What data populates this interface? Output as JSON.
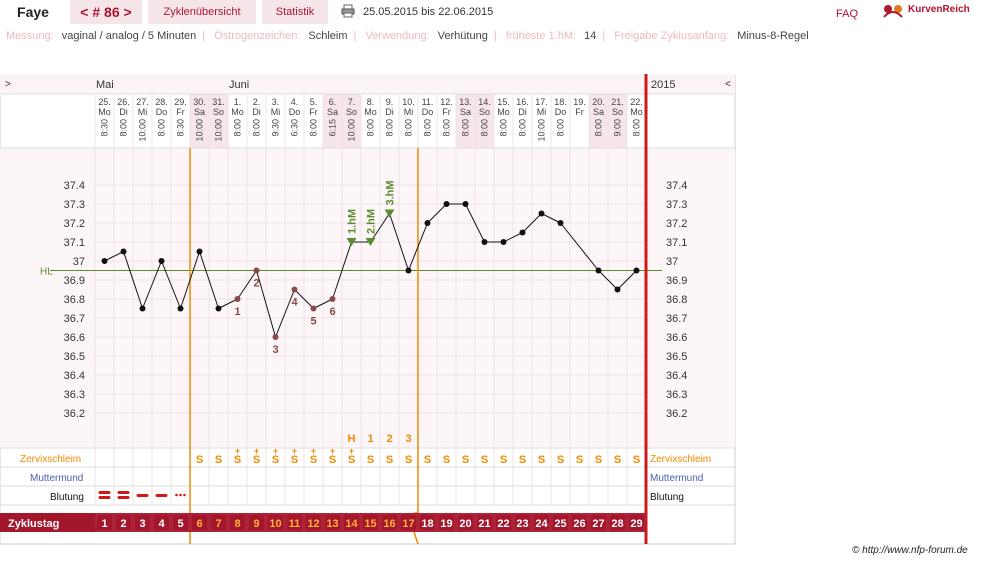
{
  "header": {
    "name": "Faye",
    "cycle_label": "< # 86 >",
    "tabs": [
      {
        "label": "Zyklenübersicht"
      },
      {
        "label": "Statistik"
      }
    ],
    "date_range": "25.05.2015 bis 22.06.2015",
    "faq": "FAQ",
    "logo_text": "KurvenReich"
  },
  "info": [
    {
      "key": "Messung:",
      "value": "vaginal / analog / 5 Minuten"
    },
    {
      "key": "Östrogenzeichen:",
      "value": "Schleim"
    },
    {
      "key": "Verwendung:",
      "value": "Verhütung"
    },
    {
      "key": "früheste 1.hM:",
      "value": "14"
    },
    {
      "key": "Freigabe Zyklusanfang:",
      "value": "Minus-8-Regel"
    }
  ],
  "nav": {
    "prev": ">",
    "next": "<",
    "year": "2015"
  },
  "months": [
    {
      "label": "Mai",
      "day_index": 0
    },
    {
      "label": "Juni",
      "day_index": 7
    }
  ],
  "days": [
    {
      "date": "25.",
      "wd": "Mo",
      "time": "8:30"
    },
    {
      "date": "26.",
      "wd": "Di",
      "time": "8:00"
    },
    {
      "date": "27.",
      "wd": "Mi",
      "time": "10:00"
    },
    {
      "date": "28.",
      "wd": "Do",
      "time": "8:00"
    },
    {
      "date": "29.",
      "wd": "Fr",
      "time": "8:30"
    },
    {
      "date": "30.",
      "wd": "Sa",
      "time": "10:00"
    },
    {
      "date": "31.",
      "wd": "So",
      "time": "10:00"
    },
    {
      "date": "1.",
      "wd": "Mo",
      "time": "8:00"
    },
    {
      "date": "2.",
      "wd": "Di",
      "time": "8:00"
    },
    {
      "date": "3.",
      "wd": "Mi",
      "time": "9:30"
    },
    {
      "date": "4.",
      "wd": "Do",
      "time": "6:30"
    },
    {
      "date": "5.",
      "wd": "Fr",
      "time": "8:00"
    },
    {
      "date": "6.",
      "wd": "Sa",
      "time": "6:15"
    },
    {
      "date": "7.",
      "wd": "So",
      "time": "10:00"
    },
    {
      "date": "8.",
      "wd": "Mo",
      "time": "8:00"
    },
    {
      "date": "9.",
      "wd": "Di",
      "time": "8:00"
    },
    {
      "date": "10.",
      "wd": "Mi",
      "time": "8:00"
    },
    {
      "date": "11.",
      "wd": "Do",
      "time": "8:00"
    },
    {
      "date": "12.",
      "wd": "Fr",
      "time": "8:00"
    },
    {
      "date": "13.",
      "wd": "Sa",
      "time": "8:00"
    },
    {
      "date": "14.",
      "wd": "So",
      "time": "8:00"
    },
    {
      "date": "15.",
      "wd": "Mo",
      "time": "8:00"
    },
    {
      "date": "16.",
      "wd": "Di",
      "time": "8:00"
    },
    {
      "date": "17.",
      "wd": "Mi",
      "time": "10:00"
    },
    {
      "date": "18.",
      "wd": "Do",
      "time": "8:00"
    },
    {
      "date": "19.",
      "wd": "Fr",
      "time": ""
    },
    {
      "date": "20.",
      "wd": "Sa",
      "time": "8:00"
    },
    {
      "date": "21.",
      "wd": "So",
      "time": "9:00"
    },
    {
      "date": "22.",
      "wd": "Mo",
      "time": "8:00"
    }
  ],
  "weekend_indices": [
    5,
    6,
    12,
    13,
    19,
    20,
    26,
    27
  ],
  "y_ticks": [
    "37.4",
    "37.3",
    "37.2",
    "37.1",
    "37",
    "36.9",
    "36.8",
    "36.7",
    "36.6",
    "36.5",
    "36.4",
    "36.3",
    "36.2"
  ],
  "hl_label": "HL",
  "hl_value": 36.95,
  "temps": [
    37.0,
    37.05,
    36.75,
    37.0,
    36.75,
    37.05,
    36.75,
    36.8,
    36.95,
    36.6,
    36.85,
    36.75,
    36.8,
    37.1,
    37.1,
    37.25,
    36.95,
    37.2,
    37.3,
    37.3,
    37.1,
    37.1,
    37.15,
    37.25,
    37.2,
    null,
    36.95,
    36.85,
    36.95
  ],
  "low_labels": [
    {
      "day_index": 7,
      "label": "1"
    },
    {
      "day_index": 8,
      "label": "2"
    },
    {
      "day_index": 9,
      "label": "3"
    },
    {
      "day_index": 10,
      "label": "4"
    },
    {
      "day_index": 11,
      "label": "5"
    },
    {
      "day_index": 12,
      "label": "6"
    }
  ],
  "high_labels": [
    {
      "day_index": 13,
      "label": "1.hM"
    },
    {
      "day_index": 14,
      "label": "2.hM"
    },
    {
      "day_index": 15,
      "label": "3.hM"
    }
  ],
  "peak_labels": [
    {
      "day_index": 13,
      "label": "H"
    },
    {
      "day_index": 14,
      "label": "1"
    },
    {
      "day_index": 15,
      "label": "2"
    },
    {
      "day_index": 16,
      "label": "3"
    }
  ],
  "rows": {
    "zervix": "Zervixschleim",
    "muttermund": "Muttermund",
    "blutung": "Blutung",
    "zyklustag": "Zyklustag"
  },
  "zervix_values": [
    "",
    "",
    "",
    "",
    "",
    "S",
    "S",
    "S",
    "S",
    "S",
    "S",
    "S",
    "S",
    "S",
    "S",
    "S",
    "S",
    "S",
    "S",
    "S",
    "S",
    "S",
    "S",
    "S",
    "S",
    "S",
    "S",
    "S",
    "S"
  ],
  "zervix_plus_indices": [
    7,
    8,
    9,
    10,
    11,
    12,
    13
  ],
  "bleeding": [
    "heavy",
    "heavy",
    "medium",
    "medium",
    "light"
  ],
  "cycle_days": [
    "1",
    "2",
    "3",
    "4",
    "5",
    "6",
    "7",
    "8",
    "9",
    "10",
    "11",
    "12",
    "13",
    "14",
    "15",
    "16",
    "17",
    "18",
    "19",
    "20",
    "21",
    "22",
    "23",
    "24",
    "25",
    "26",
    "27",
    "28",
    "29"
  ],
  "highlight_cycle_range": [
    5,
    16
  ],
  "colors": {
    "accent": "#b01530",
    "zyklus_bar": "#a3162b",
    "orange": "#f08a00",
    "green": "#5b8c2f",
    "low": "#8b4a4a",
    "blue": "#4a5db0",
    "weekend": "#f6e6ea"
  },
  "copyright": "© http://www.nfp-forum.de"
}
